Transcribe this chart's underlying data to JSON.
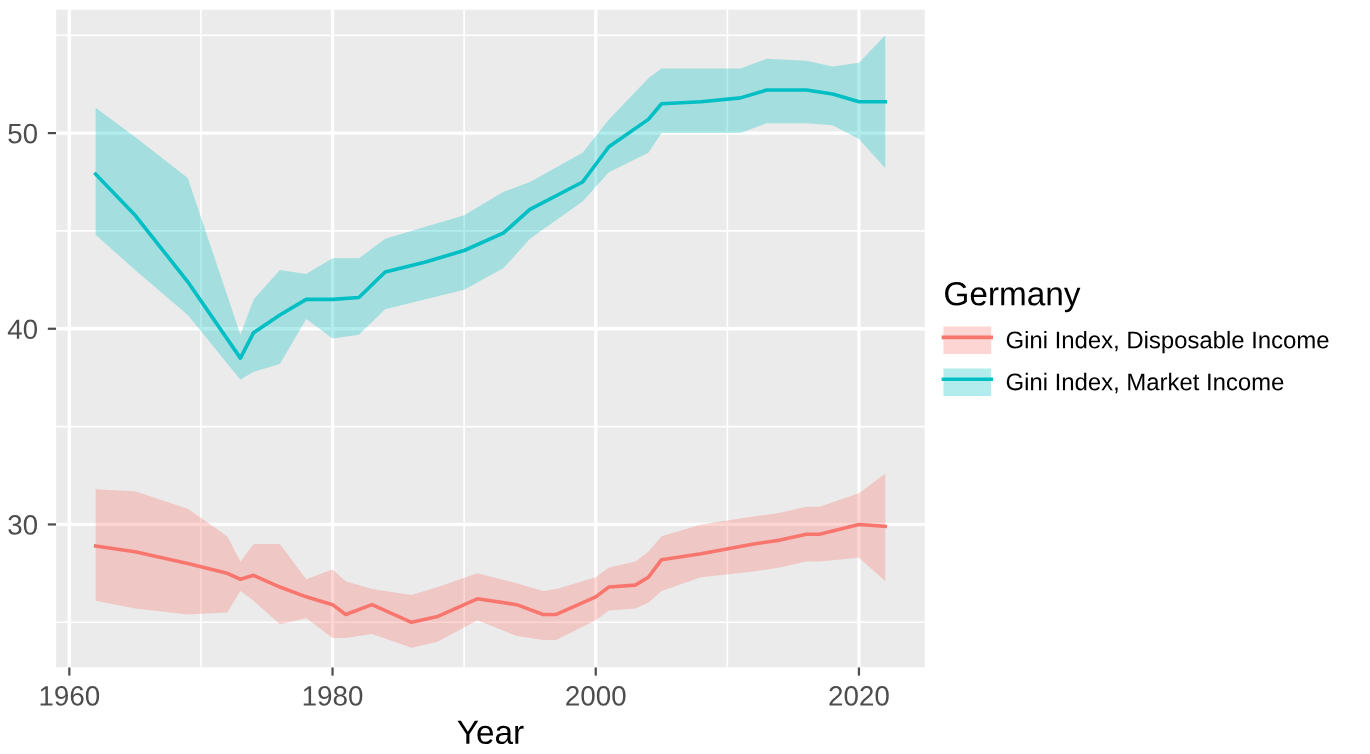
{
  "chart_data": {
    "type": "line",
    "xlabel": "Year",
    "legend_title": "Germany",
    "legend": "right",
    "grid": true,
    "xlim": [
      1959,
      2025
    ],
    "xticks": [
      1960,
      1980,
      2000,
      2020
    ],
    "ylim": [
      22.7,
      56.3
    ],
    "yticks": [
      30,
      40,
      50
    ],
    "series": [
      {
        "name": "Gini Index, Disposable Income",
        "color": "#f8766d",
        "x": [
          1962,
          1965,
          1969,
          1972,
          1973,
          1974,
          1976,
          1978,
          1980,
          1981,
          1983,
          1986,
          1988,
          1991,
          1994,
          1996,
          1997,
          2000,
          2001,
          2003,
          2004,
          2005,
          2008,
          2012,
          2014,
          2016,
          2017,
          2020,
          2022
        ],
        "values": [
          28.9,
          28.6,
          28.0,
          27.5,
          27.2,
          27.4,
          26.8,
          26.3,
          25.9,
          25.4,
          25.9,
          25.0,
          25.3,
          26.2,
          25.9,
          25.4,
          25.4,
          26.3,
          26.8,
          26.9,
          27.3,
          28.2,
          28.5,
          29.0,
          29.2,
          29.5,
          29.5,
          30.0,
          29.9
        ],
        "upper": [
          31.8,
          31.7,
          30.8,
          29.4,
          28.1,
          29.0,
          29.0,
          27.2,
          27.7,
          27.1,
          26.7,
          26.4,
          26.8,
          27.5,
          27.0,
          26.6,
          26.7,
          27.3,
          27.8,
          28.1,
          28.6,
          29.4,
          30.0,
          30.4,
          30.6,
          30.9,
          30.9,
          31.6,
          32.6
        ],
        "lower": [
          26.1,
          25.7,
          25.4,
          25.5,
          26.6,
          26.1,
          24.9,
          25.2,
          24.2,
          24.2,
          24.4,
          23.7,
          24.0,
          25.1,
          24.3,
          24.1,
          24.1,
          25.1,
          25.6,
          25.7,
          26.0,
          26.6,
          27.3,
          27.6,
          27.8,
          28.1,
          28.1,
          28.3,
          27.1
        ]
      },
      {
        "name": "Gini Index, Market Income",
        "color": "#00bfc4",
        "x": [
          1962,
          1965,
          1969,
          1973,
          1974,
          1976,
          1978,
          1980,
          1982,
          1984,
          1987,
          1990,
          1993,
          1995,
          1999,
          2001,
          2004,
          2005,
          2008,
          2011,
          2013,
          2016,
          2018,
          2020,
          2022
        ],
        "values": [
          47.9,
          45.8,
          42.4,
          38.5,
          39.8,
          40.7,
          41.5,
          41.5,
          41.6,
          42.9,
          43.4,
          44.0,
          44.9,
          46.1,
          47.5,
          49.3,
          50.7,
          51.5,
          51.6,
          51.8,
          52.2,
          52.2,
          52.0,
          51.6,
          51.6
        ],
        "upper": [
          51.3,
          49.8,
          47.7,
          39.7,
          41.5,
          43.0,
          42.8,
          43.6,
          43.6,
          44.6,
          45.2,
          45.8,
          47.0,
          47.5,
          49.0,
          50.7,
          52.8,
          53.3,
          53.3,
          53.3,
          53.8,
          53.7,
          53.4,
          53.6,
          55.0
        ],
        "lower": [
          44.8,
          43.0,
          40.7,
          37.4,
          37.8,
          38.2,
          40.5,
          39.5,
          39.7,
          41.0,
          41.5,
          42.0,
          43.1,
          44.6,
          46.5,
          48.0,
          49.0,
          50.0,
          50.0,
          50.0,
          50.5,
          50.5,
          50.4,
          49.7,
          48.2
        ]
      }
    ]
  }
}
